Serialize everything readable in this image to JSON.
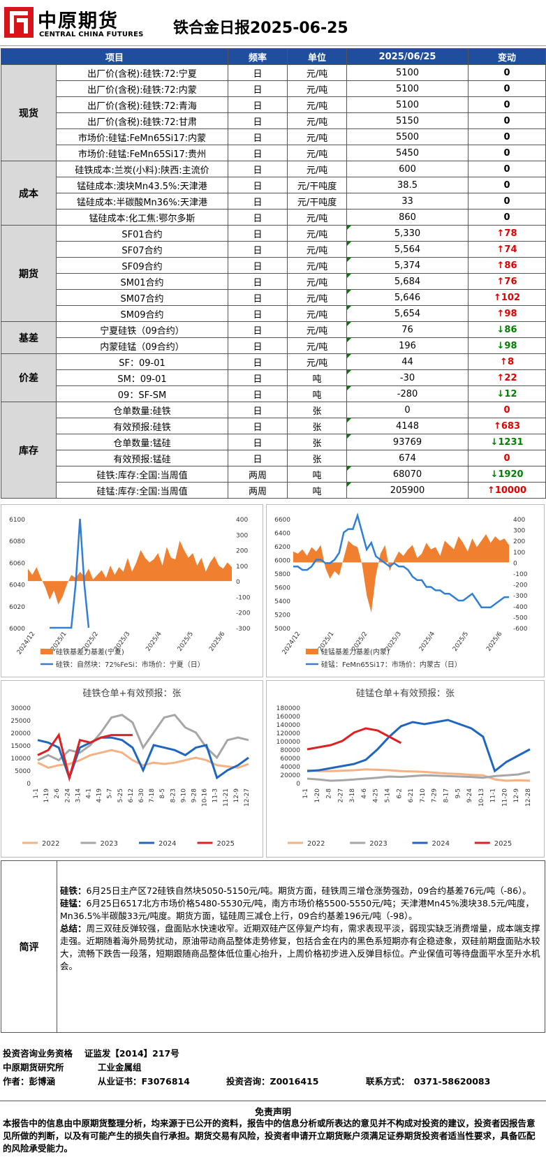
{
  "header": {
    "logo_cn": "中原期货",
    "logo_en": "CENTRAL CHINA FUTURES",
    "title": "铁合金日报2025-06-25"
  },
  "table": {
    "headers": [
      "项目",
      "频率",
      "单位",
      "2025/06/25",
      "变动"
    ],
    "groups": [
      {
        "cat": "现货",
        "rows": [
          {
            "item": "出厂价(含税):硅铁:72:宁夏",
            "freq": "日",
            "unit": "元/吨",
            "value": "5100",
            "change": "0",
            "dir": "zero"
          },
          {
            "item": "出厂价(含税):硅铁:72:内蒙",
            "freq": "日",
            "unit": "元/吨",
            "value": "5100",
            "change": "0",
            "dir": "zero"
          },
          {
            "item": "出厂价(含税):硅铁:72:青海",
            "freq": "日",
            "unit": "元/吨",
            "value": "5100",
            "change": "0",
            "dir": "zero"
          },
          {
            "item": "出厂价(含税):硅铁:72:甘肃",
            "freq": "日",
            "unit": "元/吨",
            "value": "5150",
            "change": "0",
            "dir": "zero"
          },
          {
            "item": "市场价:硅锰:FeMn65Si17:内蒙",
            "freq": "日",
            "unit": "元/吨",
            "value": "5500",
            "change": "0",
            "dir": "zero"
          },
          {
            "item": "市场价:硅锰:FeMn65Si17:贵州",
            "freq": "日",
            "unit": "元/吨",
            "value": "5450",
            "change": "0",
            "dir": "zero"
          }
        ]
      },
      {
        "cat": "成本",
        "rows": [
          {
            "item": "硅铁成本:兰炭(小料):陕西:主流价",
            "freq": "日",
            "unit": "元/吨",
            "value": "600",
            "change": "0",
            "dir": "zero"
          },
          {
            "item": "锰硅成本:澳块Mn43.5%:天津港",
            "freq": "日",
            "unit": "元/干吨度",
            "value": "38.5",
            "change": "0",
            "dir": "zero"
          },
          {
            "item": "锰硅成本:半碳酸Mn36%:天津港",
            "freq": "日",
            "unit": "元/干吨度",
            "value": "33",
            "change": "0",
            "dir": "zero"
          },
          {
            "item": "锰硅成本:化工焦:鄂尔多斯",
            "freq": "日",
            "unit": "元/吨",
            "value": "860",
            "change": "0",
            "dir": "zero"
          }
        ]
      },
      {
        "cat": "期货",
        "rows": [
          {
            "item": "SF01合约",
            "freq": "日",
            "unit": "元/吨",
            "value": "5,330",
            "change": "78",
            "dir": "up"
          },
          {
            "item": "SF07合约",
            "freq": "日",
            "unit": "元/吨",
            "value": "5,564",
            "change": "74",
            "dir": "up"
          },
          {
            "item": "SF09合约",
            "freq": "日",
            "unit": "元/吨",
            "value": "5,374",
            "change": "86",
            "dir": "up"
          },
          {
            "item": "SM01合约",
            "freq": "日",
            "unit": "元/吨",
            "value": "5,684",
            "change": "76",
            "dir": "up"
          },
          {
            "item": "SM07合约",
            "freq": "日",
            "unit": "元/吨",
            "value": "5,646",
            "change": "102",
            "dir": "up"
          },
          {
            "item": "SM09合约",
            "freq": "日",
            "unit": "元/吨",
            "value": "5,654",
            "change": "98",
            "dir": "up"
          }
        ]
      },
      {
        "cat": "基差",
        "rows": [
          {
            "item": "宁夏硅铁（09合约）",
            "freq": "日",
            "unit": "元/吨",
            "value": "76",
            "change": "86",
            "dir": "dn"
          },
          {
            "item": "内蒙硅锰（09合约）",
            "freq": "日",
            "unit": "元/吨",
            "value": "196",
            "change": "98",
            "dir": "dn"
          }
        ]
      },
      {
        "cat": "价差",
        "rows": [
          {
            "item": "SF：09-01",
            "freq": "日",
            "unit": "元/吨",
            "value": "44",
            "change": "8",
            "dir": "up"
          },
          {
            "item": "SM：09-01",
            "freq": "日",
            "unit": "吨",
            "value": "-30",
            "change": "22",
            "dir": "up"
          },
          {
            "item": "09：SF-SM",
            "freq": "日",
            "unit": "吨",
            "value": "-280",
            "change": "12",
            "dir": "dn"
          }
        ]
      },
      {
        "cat": "库存",
        "rows": [
          {
            "item": "仓单数量:硅铁",
            "freq": "日",
            "unit": "张",
            "value": "0",
            "change": "0",
            "dir": "zred"
          },
          {
            "item": "有效预报:硅铁",
            "freq": "日",
            "unit": "张",
            "value": "4148",
            "change": "683",
            "dir": "up"
          },
          {
            "item": "仓单数量:锰硅",
            "freq": "日",
            "unit": "张",
            "value": "93769",
            "change": "1231",
            "dir": "dn"
          },
          {
            "item": "有效预报:锰硅",
            "freq": "日",
            "unit": "张",
            "value": "674",
            "change": "0",
            "dir": "zred"
          },
          {
            "item": "硅铁:库存:全国:当周值",
            "freq": "两周",
            "unit": "吨",
            "value": "68070",
            "change": "1920",
            "dir": "dn"
          },
          {
            "item": "硅锰:库存:全国:当周值",
            "freq": "两周",
            "unit": "吨",
            "value": "205900",
            "change": "10000",
            "dir": "up"
          }
        ]
      }
    ]
  },
  "chart_data": [
    {
      "type": "line",
      "chart": "sf-basis",
      "x_ticks": [
        "2024/12",
        "2025/1",
        "2025/2",
        "2025/3",
        "2025/4",
        "2025/5",
        "2025/6"
      ],
      "ylim": [
        6000,
        6100
      ],
      "yticks": [
        6000,
        6020,
        6040,
        6060,
        6080,
        6100
      ],
      "y2lim": [
        -300,
        400
      ],
      "y2ticks": [
        -300,
        -200,
        -100,
        0,
        100,
        200,
        300,
        400
      ],
      "series": [
        {
          "name": "硅铁基差力基差(宁夏)",
          "kind": "area",
          "axis": "right",
          "values": [
            80,
            40,
            90,
            20,
            -40,
            -120,
            -60,
            -150,
            -100,
            -20,
            40,
            20,
            60,
            30,
            80,
            10,
            40,
            70,
            20,
            100,
            40,
            90,
            60,
            150,
            60,
            120,
            200,
            150,
            120,
            140,
            180,
            100,
            220,
            150,
            140,
            260,
            200,
            150,
            180,
            100,
            150,
            60,
            120,
            160,
            100,
            80,
            120,
            90
          ]
        },
        {
          "name": "硅铁：自然块：72%FeSi：市场价：宁夏（日）",
          "kind": "line",
          "axis": "left",
          "values": [
            6000,
            null,
            null,
            null,
            null,
            6000,
            6000,
            6000,
            6000,
            6000,
            6000,
            6040,
            6100,
            6040,
            6000,
            null,
            null,
            null,
            null,
            null,
            null,
            null,
            null,
            null,
            null,
            null,
            null,
            null,
            null,
            null,
            null,
            null,
            null,
            null,
            null,
            null,
            null,
            null,
            null,
            null,
            null,
            null,
            null,
            null,
            null,
            null,
            null,
            null
          ]
        }
      ]
    },
    {
      "type": "line",
      "chart": "sm-basis",
      "x_ticks": [
        "2024/12",
        "2025/1",
        "2025/2",
        "2025/3",
        "2025/4",
        "2025/5",
        "2025/6"
      ],
      "ylim": [
        5000,
        6600
      ],
      "yticks": [
        5000,
        5200,
        5400,
        5600,
        5800,
        6000,
        6200,
        6400,
        6600
      ],
      "y2lim": [
        -600,
        400
      ],
      "y2ticks": [
        -600,
        -500,
        -400,
        -300,
        -200,
        -100,
        0,
        100,
        200,
        300,
        400
      ],
      "series": [
        {
          "name": "硅锰基差力基差(内蒙)",
          "kind": "area",
          "axis": "right",
          "values": [
            100,
            80,
            120,
            60,
            140,
            100,
            160,
            -50,
            -150,
            -80,
            -120,
            40,
            200,
            160,
            140,
            -20,
            -300,
            -460,
            -120,
            80,
            160,
            -80,
            20,
            100,
            60,
            120,
            160,
            40,
            80,
            180,
            120,
            140,
            60,
            200,
            160,
            120,
            240,
            180,
            100,
            220,
            140,
            200,
            260,
            180,
            240,
            200,
            220,
            160
          ]
        },
        {
          "name": "硅锰：FeMn65Si17：市场价：内蒙古（日）",
          "kind": "line",
          "axis": "left",
          "values": [
            5900,
            5900,
            5850,
            5850,
            5900,
            6000,
            6000,
            5950,
            5950,
            6000,
            6100,
            6400,
            6450,
            6450,
            6650,
            6400,
            6150,
            6250,
            6050,
            6000,
            5950,
            5900,
            5950,
            5900,
            5900,
            5850,
            5750,
            5700,
            5700,
            5600,
            5600,
            5550,
            5550,
            5500,
            5500,
            5450,
            5400,
            5400,
            5450,
            5500,
            5400,
            5300,
            5300,
            5300,
            5350,
            5400,
            5450,
            5450
          ]
        }
      ]
    },
    {
      "type": "line",
      "chart": "sf-receipts",
      "title": "硅铁仓单+有效预报：张",
      "categories": [
        "1-1",
        "1-19",
        "2-6",
        "2-24",
        "3-14",
        "4-1",
        "4-19",
        "5-7",
        "5-25",
        "6-12",
        "6-30",
        "7-18",
        "8-5",
        "8-23",
        "9-10",
        "9-28",
        "10-16",
        "11-3",
        "11-21",
        "12-9",
        "12-27"
      ],
      "ylim": [
        0,
        30000
      ],
      "yticks": [
        0,
        5000,
        10000,
        15000,
        20000,
        25000,
        30000
      ],
      "series": [
        {
          "name": "2022",
          "values": [
            8000,
            6000,
            7000,
            7500,
            9000,
            11000,
            12000,
            13000,
            12000,
            9000,
            7000,
            8000,
            7500,
            8000,
            9000,
            10000,
            9000,
            7000,
            6500,
            6000,
            7500
          ]
        },
        {
          "name": "2023",
          "values": [
            9000,
            11000,
            9000,
            13000,
            12000,
            15000,
            20000,
            26000,
            27000,
            24000,
            14000,
            20000,
            26000,
            27000,
            22000,
            20000,
            14000,
            10000,
            17000,
            18000,
            17000
          ]
        },
        {
          "name": "2024",
          "values": [
            17000,
            16000,
            14000,
            2000,
            14000,
            16000,
            18000,
            18000,
            17000,
            14000,
            5000,
            15000,
            14000,
            13000,
            11000,
            14000,
            15000,
            2000,
            5000,
            7000,
            10000
          ]
        },
        {
          "name": "2025",
          "values": [
            11000,
            13000,
            19000,
            2000,
            17000,
            16000,
            18000,
            19000,
            19000,
            19000,
            null,
            null,
            null,
            null,
            null,
            null,
            null,
            null,
            null,
            null,
            null
          ]
        }
      ]
    },
    {
      "type": "line",
      "chart": "sm-receipts",
      "title": "硅锰仓单+有效预报：张",
      "categories": [
        "1-1",
        "1-20",
        "2-8",
        "2-27",
        "3-18",
        "4-6",
        "4-25",
        "5-14",
        "6-2",
        "6-21",
        "7-10",
        "7-29",
        "8-17",
        "9-5",
        "9-24",
        "10-13",
        "11-1",
        "11-20",
        "12-9",
        "12-28"
      ],
      "ylim": [
        0,
        180000
      ],
      "yticks": [
        0,
        20000,
        40000,
        60000,
        80000,
        100000,
        120000,
        140000,
        160000,
        180000
      ],
      "series": [
        {
          "name": "2022",
          "values": [
            30000,
            28000,
            28000,
            29000,
            30000,
            32000,
            31000,
            30000,
            28000,
            27000,
            26000,
            24000,
            22000,
            21000,
            19000,
            18000,
            8000,
            5000,
            6000,
            5000
          ]
        },
        {
          "name": "2023",
          "values": [
            10000,
            8000,
            5000,
            6000,
            8000,
            10000,
            12000,
            15000,
            14000,
            16000,
            18000,
            17000,
            16000,
            15000,
            14000,
            12000,
            16000,
            18000,
            20000,
            26000
          ]
        },
        {
          "name": "2024",
          "values": [
            28000,
            30000,
            35000,
            40000,
            45000,
            55000,
            80000,
            110000,
            135000,
            145000,
            140000,
            145000,
            150000,
            140000,
            130000,
            110000,
            28000,
            50000,
            65000,
            80000
          ]
        },
        {
          "name": "2025",
          "values": [
            80000,
            85000,
            90000,
            100000,
            120000,
            130000,
            125000,
            110000,
            95000,
            null,
            null,
            null,
            null,
            null,
            null,
            null,
            null,
            null,
            null,
            null
          ]
        }
      ]
    }
  ],
  "comment": {
    "label": "简评",
    "p1_head": "硅铁：",
    "p1": "6月25日主产区72硅铁自然块5050-5150元/吨。期货方面，硅铁周三增仓涨势强劲，09合约基差76元/吨（-86）。",
    "p2_head": "硅锰：",
    "p2": "6月25日6517北方市场价格5480-5530元/吨，南方市场价格5500-5550元/吨；天津港Mn45%澳块38.5元/吨度，Mn36.5%半碳酸33元/吨度。期货方面，锰硅周三减仓上行，09合约基差196元/吨（-98）。",
    "p3_head": "总结：",
    "p3": "周三双硅反弹较强，盘面贴水快速收窄。近期双硅产区停复产均有，需求表现平淡，弱现实缺乏消费增量，成本端支撑走强。近期随着海外局势扰动，原油带动商品整体走势修复，包括合金在内的黑色系短期亦有企稳迹象，双硅前期盘面贴水较大，流畅下跌告一段落，短期跟随商品整体低位重心抬升，上周价格初步进入反弹目标位。产业保值可等待盘面平水至升水机会。"
  },
  "footer": {
    "line1": "投资咨询业务资格　 证监发【2014】217号",
    "line2a": "中原期货研究所",
    "line2b": "工业金属组",
    "author": "作者：彭博涵",
    "cert": "从业证书：F3076814",
    "advisor": "投资咨询：Z0016415",
    "contact": "联系方式：　0371-58620083",
    "disc_title": "免责声明",
    "disc": "本报告中的信息由中原期货整理分析，均来源于已公开的资料，报告中的信息分析或所表达的意见并不构成对投资的建议，投资者因报告意见所做的判断，以及有可能产生的损失自行承担。期货交易有风险，投资者申请开立期货账户须满足证券期货投资者适当性要求，具备匹配的风险承受能力。"
  },
  "colors": {
    "header_blue": "#1f4e9e",
    "up": "#e00000",
    "down": "#008000",
    "area": "#f08030",
    "line_blue": "#2f7fd8",
    "s2022": "#f4b183",
    "s2023": "#a6a6a6",
    "s2024": "#1f66c1",
    "s2025": "#e02020"
  }
}
